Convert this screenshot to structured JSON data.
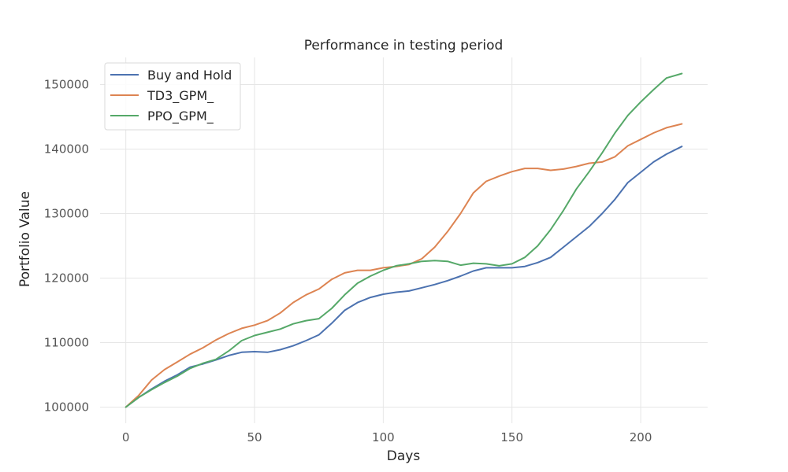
{
  "chart_data": {
    "type": "line",
    "title": "Performance in testing period",
    "xlabel": "Days",
    "ylabel": "Portfolio Value",
    "xlim": [
      -10,
      226
    ],
    "ylim": [
      97500,
      154200
    ],
    "xticks": [
      0,
      50,
      100,
      150,
      200
    ],
    "yticks": [
      100000,
      110000,
      120000,
      130000,
      140000,
      150000
    ],
    "grid": true,
    "legend": "top-left",
    "series": [
      {
        "name": "Buy and Hold",
        "color": "#4c72b0",
        "x": [
          0,
          5,
          10,
          15,
          20,
          25,
          30,
          35,
          40,
          45,
          50,
          55,
          60,
          65,
          70,
          75,
          80,
          85,
          90,
          95,
          100,
          105,
          110,
          115,
          120,
          125,
          130,
          135,
          140,
          145,
          150,
          155,
          160,
          165,
          170,
          175,
          180,
          185,
          190,
          195,
          200,
          205,
          210,
          216
        ],
        "values": [
          100000,
          101500,
          102800,
          104000,
          105000,
          106200,
          106700,
          107300,
          108000,
          108500,
          108600,
          108500,
          108900,
          109500,
          110300,
          111200,
          113000,
          115000,
          116200,
          117000,
          117500,
          117800,
          118000,
          118500,
          119000,
          119600,
          120300,
          121100,
          121600,
          121600,
          121600,
          121800,
          122400,
          123200,
          124800,
          126400,
          128000,
          130000,
          132200,
          134800,
          136400,
          138000,
          139200,
          140400
        ]
      },
      {
        "name": "TD3_GPM_",
        "color": "#dd8452",
        "x": [
          0,
          5,
          10,
          15,
          20,
          25,
          30,
          35,
          40,
          45,
          50,
          55,
          60,
          65,
          70,
          75,
          80,
          85,
          90,
          95,
          100,
          105,
          110,
          115,
          120,
          125,
          130,
          135,
          140,
          145,
          150,
          155,
          160,
          165,
          170,
          175,
          180,
          185,
          190,
          195,
          200,
          205,
          210,
          216
        ],
        "values": [
          100000,
          101800,
          104200,
          105800,
          107000,
          108200,
          109200,
          110400,
          111400,
          112200,
          112700,
          113400,
          114600,
          116200,
          117400,
          118300,
          119800,
          120800,
          121200,
          121200,
          121600,
          121800,
          122100,
          123000,
          124800,
          127200,
          130000,
          133200,
          135000,
          135800,
          136500,
          137000,
          137000,
          136700,
          136900,
          137300,
          137800,
          138000,
          138800,
          140500,
          141500,
          142500,
          143300,
          143900
        ]
      },
      {
        "name": "PPO_GPM_",
        "color": "#55a868",
        "x": [
          0,
          5,
          10,
          15,
          20,
          25,
          30,
          35,
          40,
          45,
          50,
          55,
          60,
          65,
          70,
          75,
          80,
          85,
          90,
          95,
          100,
          105,
          110,
          115,
          120,
          125,
          130,
          135,
          140,
          145,
          150,
          155,
          160,
          165,
          170,
          175,
          180,
          185,
          190,
          195,
          200,
          205,
          210,
          216
        ],
        "values": [
          100000,
          101500,
          102700,
          103800,
          104800,
          106000,
          106800,
          107400,
          108700,
          110300,
          111100,
          111600,
          112100,
          112900,
          113400,
          113700,
          115300,
          117400,
          119200,
          120300,
          121200,
          121900,
          122200,
          122600,
          122700,
          122600,
          122000,
          122300,
          122200,
          121900,
          122200,
          123200,
          125000,
          127500,
          130500,
          133800,
          136500,
          139400,
          142500,
          145200,
          147300,
          149200,
          151000,
          151700
        ]
      }
    ]
  }
}
